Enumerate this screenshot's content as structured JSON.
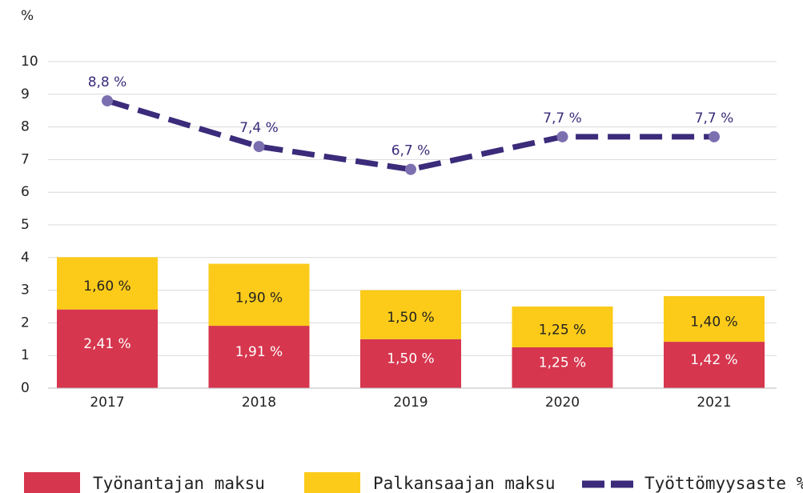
{
  "chart_data": {
    "type": "bar",
    "y_label": "%",
    "categories": [
      "2017",
      "2018",
      "2019",
      "2020",
      "2021"
    ],
    "ylim": [
      0,
      10
    ],
    "yticks": [
      0,
      1,
      2,
      3,
      4,
      5,
      6,
      7,
      8,
      9,
      10
    ],
    "grid": true,
    "stacked": true,
    "legend": "bottom",
    "series": [
      {
        "name": "Työnantajan maksu",
        "type": "bar",
        "color": "#d6364e",
        "values": [
          2.41,
          1.91,
          1.5,
          1.25,
          1.42
        ],
        "value_labels": [
          "2,41 %",
          "1,91 %",
          "1,50 %",
          "1,25 %",
          "1,42 %"
        ]
      },
      {
        "name": "Palkansaajan maksu",
        "type": "bar",
        "color": "#fccb19",
        "values": [
          1.6,
          1.9,
          1.5,
          1.25,
          1.4
        ],
        "value_labels": [
          "1,60 %",
          "1,90 %",
          "1,50 %",
          "1,25 %",
          "1,40 %"
        ]
      },
      {
        "name": "Työttömyysaste %",
        "type": "line",
        "color": "#3b2b7a",
        "marker_color": "#7c6fb0",
        "values": [
          8.8,
          7.4,
          6.7,
          7.7,
          7.7
        ],
        "value_labels": [
          "8,8 %",
          "7,4 %",
          "6,7 %",
          "7,7 %",
          "7,7 %"
        ]
      }
    ]
  }
}
